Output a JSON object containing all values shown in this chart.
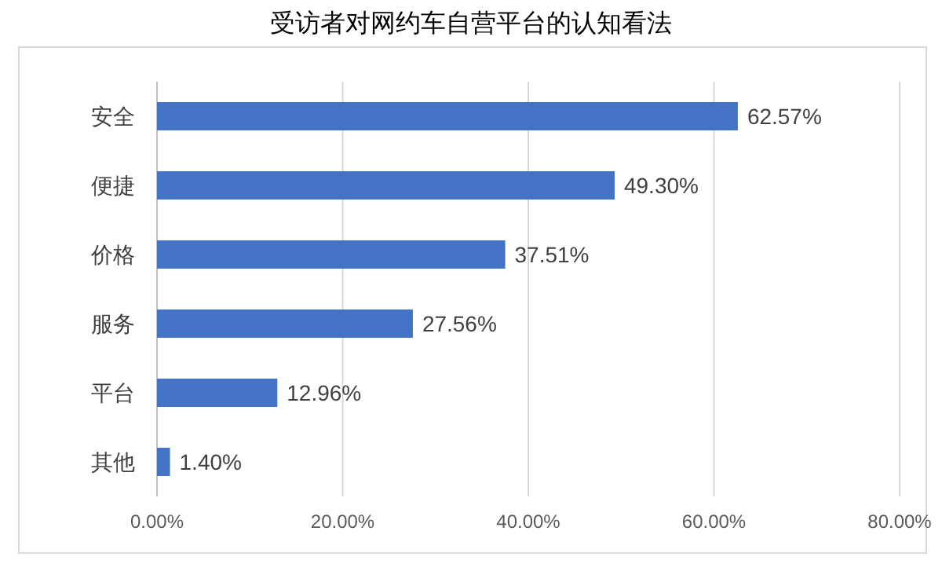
{
  "chart_data": {
    "type": "bar",
    "orientation": "horizontal",
    "title": "受访者对网约车自营平台的认知看法",
    "categories": [
      "安全",
      "便捷",
      "价格",
      "服务",
      "平台",
      "其他"
    ],
    "values": [
      62.57,
      49.3,
      37.51,
      27.56,
      12.96,
      1.4
    ],
    "value_labels": [
      "62.57%",
      "49.30%",
      "37.51%",
      "27.56%",
      "12.96%",
      "1.40%"
    ],
    "color": "#4472c4",
    "xlim": [
      0,
      80
    ],
    "xticks": [
      {
        "value": 0,
        "label": "0.00%"
      },
      {
        "value": 20,
        "label": "20.00%"
      },
      {
        "value": 40,
        "label": "40.00%"
      },
      {
        "value": 60,
        "label": "60.00%"
      },
      {
        "value": 80,
        "label": "80.00%"
      }
    ],
    "grid": "x"
  }
}
